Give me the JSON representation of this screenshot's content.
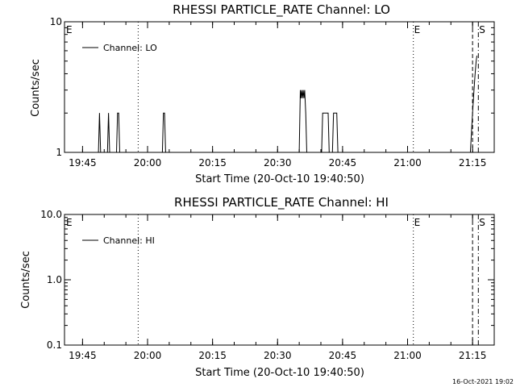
{
  "stamp": "16-Oct-2021 19:02",
  "chart_data": [
    {
      "type": "line",
      "title": "RHESSI PARTICLE_RATE Channel: LO",
      "xlabel": "Start Time (20-Oct-10 19:40:50)",
      "ylabel": "Counts/sec",
      "yscale": "log",
      "xlim": [
        "19:40:50",
        "21:20:00"
      ],
      "ylim": [
        1,
        10
      ],
      "x_ticks": [
        "19:45",
        "20:00",
        "20:15",
        "20:30",
        "20:45",
        "21:00",
        "21:15"
      ],
      "y_ticks": [
        "1",
        "10"
      ],
      "legend": "Channel: LO",
      "legend_position": "top-left",
      "color": "#000000",
      "x": [
        "19:48:40",
        "19:48:55",
        "19:49:10",
        "19:50:45",
        "19:51:00",
        "19:51:15",
        "19:52:50",
        "19:53:05",
        "19:53:20",
        "19:53:35",
        "20:03:25",
        "20:03:40",
        "20:03:55",
        "20:04:10",
        "20:35:00",
        "20:35:15",
        "20:35:25",
        "20:35:35",
        "20:35:45",
        "20:35:55",
        "20:36:05",
        "20:36:15",
        "20:36:30",
        "20:36:45",
        "20:37:00",
        "20:40:10",
        "20:40:25",
        "20:41:40",
        "20:41:55",
        "20:42:40",
        "20:42:55",
        "20:43:40",
        "20:43:55",
        "21:14:15",
        "21:14:30",
        "21:15:00",
        "21:15:20",
        "21:15:35",
        "21:15:50",
        "21:16:00"
      ],
      "y": [
        1,
        2,
        1,
        1,
        2,
        1,
        1,
        2,
        2,
        1,
        1,
        2,
        2,
        1,
        1,
        3,
        2.6,
        3,
        2.6,
        3,
        2.6,
        3,
        2,
        1,
        1,
        1,
        2,
        2,
        1,
        1,
        2,
        2,
        1,
        1,
        1,
        2,
        3,
        4,
        5,
        5.5
      ],
      "markers": [
        {
          "label": "E",
          "style": "dotted",
          "x": "19:40:50"
        },
        {
          "label": "",
          "style": "dotted",
          "x": "19:57:50"
        },
        {
          "label": "E",
          "style": "dotted",
          "x": "21:01:20"
        },
        {
          "label": "",
          "style": "dashed",
          "x": "21:15:00"
        },
        {
          "label": "S",
          "style": "dash-dot",
          "x": "21:16:20"
        }
      ]
    },
    {
      "type": "line",
      "title": "RHESSI PARTICLE_RATE Channel: HI",
      "xlabel": "Start Time (20-Oct-10 19:40:50)",
      "ylabel": "Counts/sec",
      "yscale": "log",
      "xlim": [
        "19:40:50",
        "21:20:00"
      ],
      "ylim": [
        0.1,
        10
      ],
      "x_ticks": [
        "19:45",
        "20:00",
        "20:15",
        "20:30",
        "20:45",
        "21:00",
        "21:15"
      ],
      "y_ticks": [
        "0.1",
        "1.0",
        "10.0"
      ],
      "legend": "Channel: HI",
      "legend_position": "top-left",
      "color": "#000000",
      "x": [],
      "y": [],
      "markers": [
        {
          "label": "E",
          "style": "dotted",
          "x": "19:40:50"
        },
        {
          "label": "",
          "style": "dotted",
          "x": "19:57:50"
        },
        {
          "label": "E",
          "style": "dotted",
          "x": "21:01:20"
        },
        {
          "label": "",
          "style": "dashed",
          "x": "21:15:00"
        },
        {
          "label": "S",
          "style": "dash-dot",
          "x": "21:16:20"
        }
      ]
    }
  ]
}
